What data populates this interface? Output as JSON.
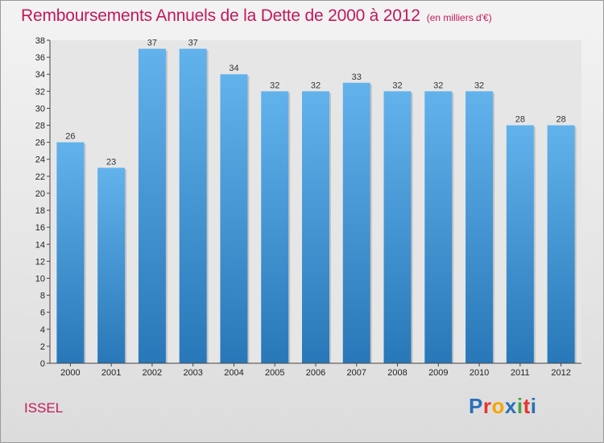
{
  "header": {
    "title": "Remboursements Annuels de la Dette de 2000 à 2012",
    "unit": "(en milliers d'€)"
  },
  "footer": {
    "commune": "ISSEL",
    "logo_letters": [
      "P",
      "r",
      "o",
      "x",
      "i",
      "t",
      "i"
    ],
    "logo_colors": [
      "#2a6fb8",
      "#e8352a",
      "#f7a400",
      "#2a6fb8",
      "#48a23f",
      "#e8352a",
      "#2a6fb8"
    ]
  },
  "chart_data": {
    "type": "bar",
    "title": "Remboursements Annuels de la Dette de 2000 à 2012",
    "xlabel": "",
    "ylabel": "",
    "categories": [
      "2000",
      "2001",
      "2002",
      "2003",
      "2004",
      "2005",
      "2006",
      "2007",
      "2008",
      "2009",
      "2010",
      "2011",
      "2012"
    ],
    "values": [
      26,
      23,
      37,
      37,
      34,
      32,
      32,
      33,
      32,
      32,
      32,
      28,
      28
    ],
    "ylim": [
      0,
      38
    ],
    "ytick_step": 2,
    "grid": false,
    "legend": "none",
    "bar_color_top": "#62b2ec",
    "bar_color_bottom": "#2878b9"
  }
}
